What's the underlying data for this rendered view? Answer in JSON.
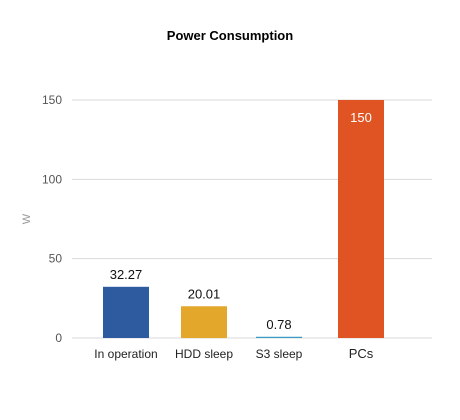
{
  "chart_data": {
    "type": "bar",
    "title": "Power Consumption",
    "xlabel": "",
    "ylabel": "W",
    "ylim": [
      0,
      150
    ],
    "yticks": [
      0,
      50,
      100,
      150
    ],
    "grid": true,
    "legend": "none",
    "categories": [
      "In operation",
      "HDD sleep",
      "S3 sleep",
      "PCs"
    ],
    "values": [
      32.27,
      20.01,
      0.78,
      150
    ],
    "data_labels": [
      "32.27",
      "20.01",
      "0.78",
      "150"
    ],
    "colors": [
      "#2e5aa0",
      "#e3a82b",
      "#3a9bc7",
      "#e05423"
    ]
  }
}
